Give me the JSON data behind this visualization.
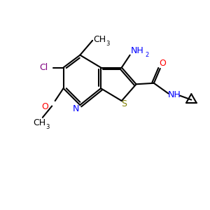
{
  "bg_color": "#ffffff",
  "atom_colors": {
    "C": "#000000",
    "N": "#0000ff",
    "O": "#ff0000",
    "S": "#808000",
    "Cl": "#800080",
    "H": "#000000",
    "NH": "#0000ff",
    "NH2": "#0000ff"
  },
  "bond_color": "#000000",
  "bond_width": 1.5,
  "font_size": 9
}
